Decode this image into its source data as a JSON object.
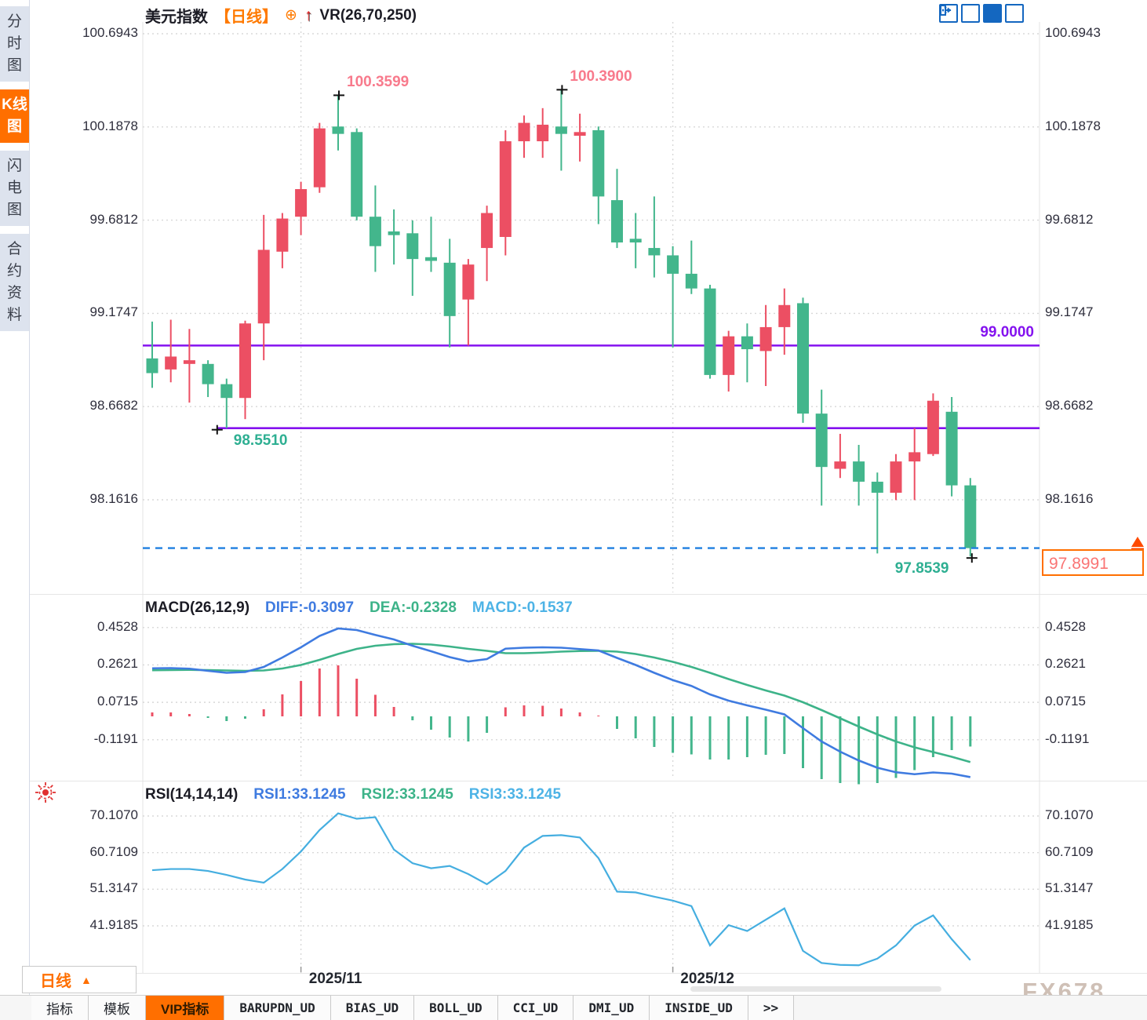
{
  "sidebar": {
    "tabs": [
      {
        "label": "分时图",
        "active": false
      },
      {
        "label": "K线图",
        "active": true
      },
      {
        "label": "闪电图",
        "active": false
      },
      {
        "label": "合约资料",
        "active": false
      }
    ]
  },
  "header": {
    "symbol": "美元指数",
    "period": "【日线】",
    "plus_icon": "⊕",
    "arrow_icon": "↑",
    "vr": "VR(26,70,250)"
  },
  "toolbar": {
    "icons": [
      "crosshair-tool",
      "axis-range-tool",
      "axis-play-tool",
      "goto-latest-tool"
    ]
  },
  "macd_header": {
    "title": "MACD(26,12,9)",
    "diff": "DIFF:-0.3097",
    "dea": "DEA:-0.2328",
    "macd": "MACD:-0.1537"
  },
  "rsi_header": {
    "title": "RSI(14,14,14)",
    "rsi1": "RSI1:33.1245",
    "rsi2": "RSI2:33.1245",
    "rsi3": "RSI3:33.1245"
  },
  "price_box": {
    "value": "97.8991"
  },
  "timeframe": {
    "label": "日线",
    "arrow": "▲"
  },
  "bottom_tabs": [
    {
      "label": "指标",
      "active": false,
      "mono": false
    },
    {
      "label": "模板",
      "active": false,
      "mono": false
    },
    {
      "label": "VIP指标",
      "active": true,
      "mono": false
    },
    {
      "label": "BARUPDN_UD",
      "active": false,
      "mono": true
    },
    {
      "label": "BIAS_UD",
      "active": false,
      "mono": true
    },
    {
      "label": "BOLL_UD",
      "active": false,
      "mono": true
    },
    {
      "label": "CCI_UD",
      "active": false,
      "mono": true
    },
    {
      "label": "DMI_UD",
      "active": false,
      "mono": true
    },
    {
      "label": "INSIDE_UD",
      "active": false,
      "mono": true
    },
    {
      "label": ">>",
      "active": false,
      "mono": true
    }
  ],
  "watermark": "FX678",
  "colors": {
    "up": "#ec4f63",
    "down": "#43b68c",
    "diff_line": "#3f7be0",
    "dea_line": "#3db389",
    "rsi_line": "#45aee0",
    "purple": "#8412ef",
    "dashed_blue": "#1f7fe0",
    "accent_orange": "#ff6f00",
    "annotation_high": "#f87a8c",
    "annotation_low": "#2eaf92",
    "grid": "#d8d8d8",
    "marker": "#111111"
  },
  "chart_data": {
    "type": "candlestick+macd+rsi",
    "title": "美元指数 日线",
    "x_labels": [
      {
        "text": "2025/11",
        "index": 8
      },
      {
        "text": "2025/12",
        "index": 28
      }
    ],
    "price_panel": {
      "type": "candlestick",
      "y_ticks": [
        "100.6943",
        "100.1878",
        "99.6812",
        "99.1747",
        "98.6682",
        "98.1616"
      ],
      "ylim_top": 100.6943,
      "ylim_bottom": 98.1616,
      "candles_ohlc": [
        [
          98.93,
          99.13,
          98.77,
          98.85
        ],
        [
          98.87,
          99.14,
          98.8,
          98.94
        ],
        [
          98.9,
          99.09,
          98.69,
          98.92
        ],
        [
          98.9,
          98.92,
          98.72,
          98.79
        ],
        [
          98.79,
          98.82,
          98.551,
          98.715
        ],
        [
          98.715,
          99.135,
          98.6,
          99.12
        ],
        [
          99.12,
          99.71,
          98.92,
          99.52
        ],
        [
          99.51,
          99.72,
          99.42,
          99.69
        ],
        [
          99.7,
          99.89,
          99.6,
          99.85
        ],
        [
          99.86,
          100.21,
          99.83,
          100.18
        ],
        [
          100.19,
          100.3599,
          100.06,
          100.15
        ],
        [
          100.16,
          100.18,
          99.68,
          99.7
        ],
        [
          99.7,
          99.87,
          99.4,
          99.54
        ],
        [
          99.62,
          99.74,
          99.44,
          99.6
        ],
        [
          99.61,
          99.68,
          99.27,
          99.47
        ],
        [
          99.48,
          99.7,
          99.4,
          99.46
        ],
        [
          99.45,
          99.58,
          98.99,
          99.16
        ],
        [
          99.25,
          99.47,
          99.0,
          99.44
        ],
        [
          99.53,
          99.76,
          99.35,
          99.72
        ],
        [
          99.59,
          100.17,
          99.49,
          100.11
        ],
        [
          100.11,
          100.25,
          100.02,
          100.21
        ],
        [
          100.11,
          100.29,
          100.02,
          100.2
        ],
        [
          100.19,
          100.39,
          99.95,
          100.15
        ],
        [
          100.14,
          100.26,
          100.0,
          100.16
        ],
        [
          100.17,
          100.19,
          99.66,
          99.81
        ],
        [
          99.79,
          99.96,
          99.53,
          99.56
        ],
        [
          99.58,
          99.72,
          99.42,
          99.56
        ],
        [
          99.53,
          99.81,
          99.37,
          99.49
        ],
        [
          99.49,
          99.54,
          98.99,
          99.39
        ],
        [
          99.39,
          99.57,
          99.28,
          99.31
        ],
        [
          99.31,
          99.33,
          98.82,
          98.84
        ],
        [
          98.84,
          99.08,
          98.75,
          99.05
        ],
        [
          99.05,
          99.12,
          98.8,
          98.98
        ],
        [
          98.97,
          99.22,
          98.78,
          99.1
        ],
        [
          99.1,
          99.31,
          98.95,
          99.22
        ],
        [
          99.23,
          99.26,
          98.58,
          98.63
        ],
        [
          98.63,
          98.76,
          98.13,
          98.34
        ],
        [
          98.33,
          98.52,
          98.28,
          98.37
        ],
        [
          98.37,
          98.46,
          98.13,
          98.26
        ],
        [
          98.26,
          98.31,
          97.87,
          98.2
        ],
        [
          98.2,
          98.41,
          98.16,
          98.37
        ],
        [
          98.37,
          98.55,
          98.16,
          98.42
        ],
        [
          98.41,
          98.74,
          98.4,
          98.7
        ],
        [
          98.64,
          98.72,
          98.18,
          98.24
        ],
        [
          98.24,
          98.28,
          97.8539,
          97.8991
        ]
      ],
      "hlines": [
        {
          "value": 99.0,
          "label": "99.0000",
          "from_index": 0
        },
        {
          "value": 98.551,
          "label": null,
          "from_index": 4
        }
      ],
      "current_price": {
        "value": 97.8991
      },
      "annotations": [
        {
          "text": "100.3599",
          "index": 10,
          "kind": "high"
        },
        {
          "text": "100.3900",
          "index": 22,
          "kind": "high"
        },
        {
          "text": "98.5510",
          "index": 4,
          "kind": "low"
        },
        {
          "text": "97.8539",
          "index": 44,
          "kind": "low",
          "align": "left"
        }
      ]
    },
    "macd_panel": {
      "type": "macd",
      "y_ticks": [
        "0.4528",
        "0.2621",
        "0.0715",
        "-0.1191"
      ],
      "diff": [
        0.245,
        0.246,
        0.243,
        0.232,
        0.222,
        0.226,
        0.252,
        0.3,
        0.352,
        0.41,
        0.448,
        0.44,
        0.415,
        0.392,
        0.36,
        0.332,
        0.302,
        0.28,
        0.292,
        0.345,
        0.35,
        0.352,
        0.35,
        0.343,
        0.336,
        0.298,
        0.262,
        0.222,
        0.185,
        0.155,
        0.112,
        0.08,
        0.056,
        0.034,
        0.01,
        -0.06,
        -0.128,
        -0.18,
        -0.225,
        -0.262,
        -0.285,
        -0.295,
        -0.286,
        -0.292,
        -0.3097
      ],
      "dea": [
        0.235,
        0.236,
        0.237,
        0.236,
        0.234,
        0.232,
        0.234,
        0.244,
        0.262,
        0.288,
        0.318,
        0.344,
        0.36,
        0.368,
        0.37,
        0.366,
        0.356,
        0.344,
        0.334,
        0.322,
        0.322,
        0.325,
        0.33,
        0.333,
        0.334,
        0.33,
        0.318,
        0.3,
        0.278,
        0.252,
        0.222,
        0.19,
        0.16,
        0.132,
        0.106,
        0.072,
        0.032,
        -0.01,
        -0.052,
        -0.092,
        -0.128,
        -0.158,
        -0.182,
        -0.206,
        -0.2328
      ]
    },
    "rsi_panel": {
      "type": "line",
      "y_ticks": [
        "70.1070",
        "60.7109",
        "51.3147",
        "41.9185"
      ],
      "values": [
        56.2,
        56.5,
        56.5,
        56.0,
        55.0,
        53.8,
        53.0,
        56.5,
        61.0,
        66.5,
        70.8,
        69.4,
        69.8,
        61.5,
        58.0,
        56.7,
        57.3,
        55.2,
        52.6,
        56.0,
        62.0,
        65.0,
        65.2,
        64.6,
        59.3,
        50.7,
        50.5,
        49.4,
        48.4,
        47.0,
        36.9,
        42.1,
        40.6,
        43.5,
        46.4,
        35.5,
        32.4,
        31.9,
        31.8,
        33.5,
        36.9,
        42.0,
        44.6,
        38.5,
        33.1245
      ]
    }
  }
}
